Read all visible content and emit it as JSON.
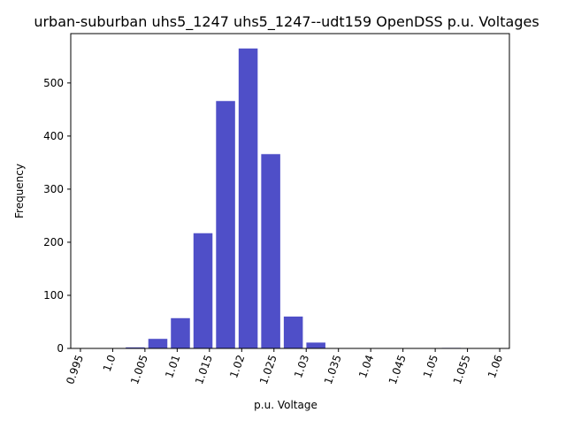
{
  "chart_data": {
    "type": "bar",
    "title": "urban-suburban uhs5_1247 uhs5_1247--udt159 OpenDSS p.u. Voltages",
    "xlabel": "p.u. Voltage",
    "ylabel": "Frequency",
    "x_ticks": [
      "0.995",
      "1.0",
      "1.005",
      "1.01",
      "1.015",
      "1.02",
      "1.025",
      "1.03",
      "1.035",
      "1.04",
      "1.045",
      "1.05",
      "1.055",
      "1.06"
    ],
    "x_tick_values": [
      0.995,
      1.0,
      1.005,
      1.01,
      1.015,
      1.02,
      1.025,
      1.03,
      1.035,
      1.04,
      1.045,
      1.05,
      1.055,
      1.06
    ],
    "y_ticks": [
      "0",
      "100",
      "200",
      "300",
      "400",
      "500"
    ],
    "y_tick_values": [
      0,
      100,
      200,
      300,
      400,
      500
    ],
    "xlim": [
      0.9935,
      1.0615
    ],
    "ylim": [
      0,
      593
    ],
    "bar_width": 0.00295,
    "bins": [
      {
        "center": 1.0035,
        "value": 2
      },
      {
        "center": 1.007,
        "value": 18
      },
      {
        "center": 1.0105,
        "value": 57
      },
      {
        "center": 1.014,
        "value": 217
      },
      {
        "center": 1.0175,
        "value": 466
      },
      {
        "center": 1.021,
        "value": 565
      },
      {
        "center": 1.0245,
        "value": 366
      },
      {
        "center": 1.028,
        "value": 60
      },
      {
        "center": 1.0315,
        "value": 11
      },
      {
        "center": 1.0525,
        "value": 1
      }
    ],
    "bar_color": "#4f4fc8",
    "tick_rotation_deg": -70,
    "grid": false,
    "legend": "none"
  }
}
